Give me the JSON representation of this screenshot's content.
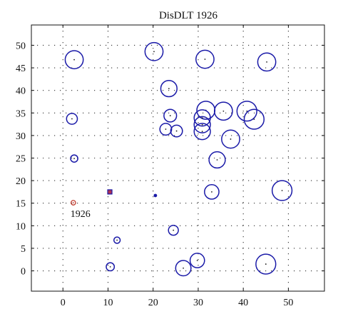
{
  "chart_data": {
    "type": "scatter",
    "title": "DisDLT 1926",
    "xlim": [
      -7,
      58
    ],
    "ylim": [
      -4.5,
      54.5
    ],
    "xticks": [
      0,
      10,
      20,
      30,
      40,
      50
    ],
    "yticks": [
      0,
      5,
      10,
      15,
      20,
      25,
      30,
      35,
      40,
      45,
      50
    ],
    "grid": true,
    "grid_style": "dotted",
    "colors": {
      "circles": "#1a1aa8",
      "highlight": "#c0392b",
      "square_fill": "#b03050",
      "axis": "#111111"
    },
    "circles": [
      {
        "x": 2.5,
        "y": 46.8,
        "r": 2.0
      },
      {
        "x": 20.2,
        "y": 48.6,
        "r": 2.0
      },
      {
        "x": 31.5,
        "y": 46.9,
        "r": 2.0
      },
      {
        "x": 45.2,
        "y": 46.3,
        "r": 2.0
      },
      {
        "x": 23.5,
        "y": 40.4,
        "r": 1.8
      },
      {
        "x": 2.0,
        "y": 33.7,
        "r": 1.2
      },
      {
        "x": 23.8,
        "y": 34.4,
        "r": 1.4
      },
      {
        "x": 22.8,
        "y": 31.4,
        "r": 1.3
      },
      {
        "x": 25.2,
        "y": 31.0,
        "r": 1.3
      },
      {
        "x": 31.7,
        "y": 35.6,
        "r": 2.0
      },
      {
        "x": 35.6,
        "y": 35.4,
        "r": 2.0
      },
      {
        "x": 30.9,
        "y": 33.9,
        "r": 1.8
      },
      {
        "x": 30.9,
        "y": 32.4,
        "r": 1.8
      },
      {
        "x": 30.9,
        "y": 30.9,
        "r": 1.8
      },
      {
        "x": 40.8,
        "y": 35.4,
        "r": 2.2
      },
      {
        "x": 42.4,
        "y": 33.6,
        "r": 2.2
      },
      {
        "x": 37.2,
        "y": 29.2,
        "r": 2.0
      },
      {
        "x": 2.5,
        "y": 24.9,
        "r": 0.8
      },
      {
        "x": 34.2,
        "y": 24.6,
        "r": 1.8
      },
      {
        "x": 33.0,
        "y": 17.5,
        "r": 1.6
      },
      {
        "x": 48.6,
        "y": 17.8,
        "r": 2.2
      },
      {
        "x": 24.5,
        "y": 9.0,
        "r": 1.1
      },
      {
        "x": 12.0,
        "y": 6.8,
        "r": 0.7
      },
      {
        "x": 29.8,
        "y": 2.3,
        "r": 1.6
      },
      {
        "x": 26.7,
        "y": 0.6,
        "r": 1.7
      },
      {
        "x": 10.5,
        "y": 0.9,
        "r": 0.9
      },
      {
        "x": 45.0,
        "y": 1.5,
        "r": 2.2
      }
    ],
    "filled_points": [
      {
        "x": 20.5,
        "y": 16.7
      }
    ],
    "square_marker": {
      "x": 10.4,
      "y": 17.5
    },
    "highlight": {
      "x": 2.3,
      "y": 15.1,
      "label": "1926"
    }
  }
}
